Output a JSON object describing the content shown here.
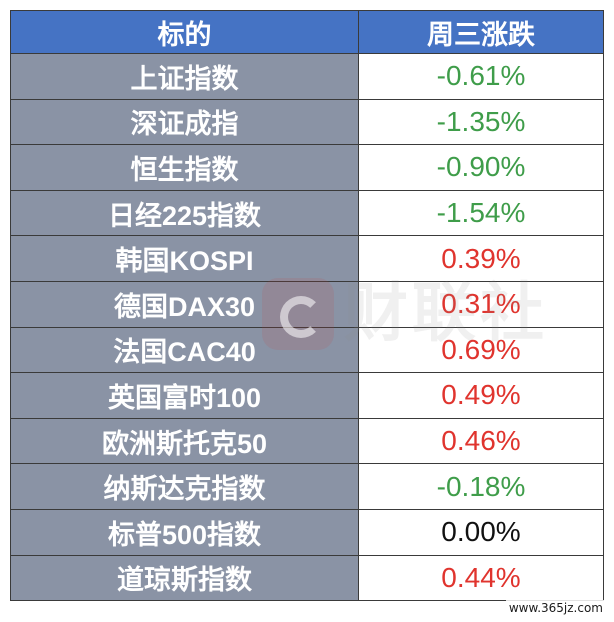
{
  "table": {
    "headers": [
      "标的",
      "周三涨跌"
    ],
    "rows": [
      {
        "name": "上证指数",
        "change": "-0.61%",
        "direction": "down"
      },
      {
        "name": "深证成指",
        "change": "-1.35%",
        "direction": "down"
      },
      {
        "name": "恒生指数",
        "change": "-0.90%",
        "direction": "down"
      },
      {
        "name": "日经225指数",
        "change": "-1.54%",
        "direction": "down"
      },
      {
        "name": "韩国KOSPI",
        "change": "0.39%",
        "direction": "up"
      },
      {
        "name": "德国DAX30",
        "change": "0.31%",
        "direction": "up"
      },
      {
        "name": "法国CAC40",
        "change": "0.69%",
        "direction": "up"
      },
      {
        "name": "英国富时100",
        "change": "0.49%",
        "direction": "up"
      },
      {
        "name": "欧洲斯托克50",
        "change": "0.46%",
        "direction": "up"
      },
      {
        "name": "纳斯达克指数",
        "change": "-0.18%",
        "direction": "down"
      },
      {
        "name": "标普500指数",
        "change": "0.00%",
        "direction": "flat"
      },
      {
        "name": "道琼斯指数",
        "change": "0.44%",
        "direction": "up"
      }
    ]
  },
  "colors": {
    "header_bg": "#4573c4",
    "name_bg": "#8a93a5",
    "down": "#3f9d4a",
    "up": "#e0342e",
    "flat": "#111111"
  },
  "watermark": {
    "icon": "cailianshe-logo-icon",
    "text": "财联社"
  },
  "site_url": "www.365jz.com"
}
